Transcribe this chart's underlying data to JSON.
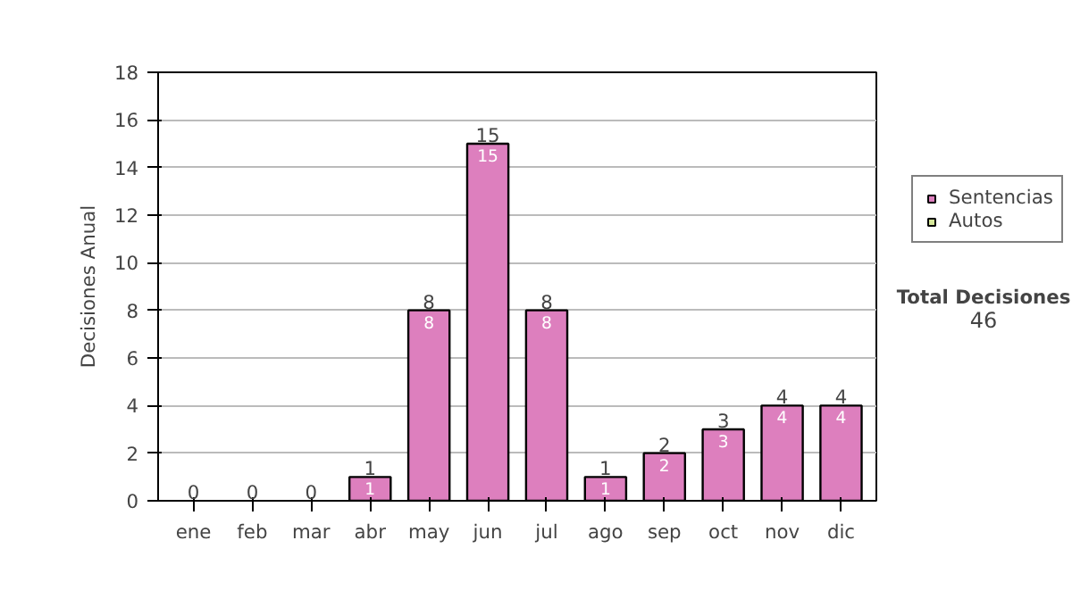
{
  "chart_data": {
    "type": "bar",
    "stacked": true,
    "ylabel": "Decisiones Anual",
    "categories": [
      "ene",
      "feb",
      "mar",
      "abr",
      "may",
      "jun",
      "jul",
      "ago",
      "sep",
      "oct",
      "nov",
      "dic"
    ],
    "series": [
      {
        "name": "Sentencias",
        "color": "#dd7fbe",
        "values": [
          0,
          0,
          0,
          1,
          8,
          15,
          8,
          1,
          2,
          3,
          4,
          4
        ],
        "value_labels": [
          null,
          null,
          null,
          "1",
          "8",
          "15",
          "8",
          "1",
          "2",
          "3",
          "4",
          "4"
        ]
      },
      {
        "name": "Autos",
        "color": "#d6e89a",
        "values": [
          0,
          0,
          0,
          0,
          0,
          0,
          0,
          0,
          0,
          0,
          0,
          0
        ]
      }
    ],
    "totals": [
      "0",
      "0",
      "0",
      "1",
      "8",
      "15",
      "8",
      "1",
      "2",
      "3",
      "4",
      "4"
    ],
    "ylim": [
      0,
      18
    ],
    "yticks": [
      0,
      2,
      4,
      6,
      8,
      10,
      12,
      14,
      16,
      18
    ],
    "grid": "y",
    "legend": "right",
    "annotations": [
      "Total Decisiones",
      "46"
    ]
  }
}
